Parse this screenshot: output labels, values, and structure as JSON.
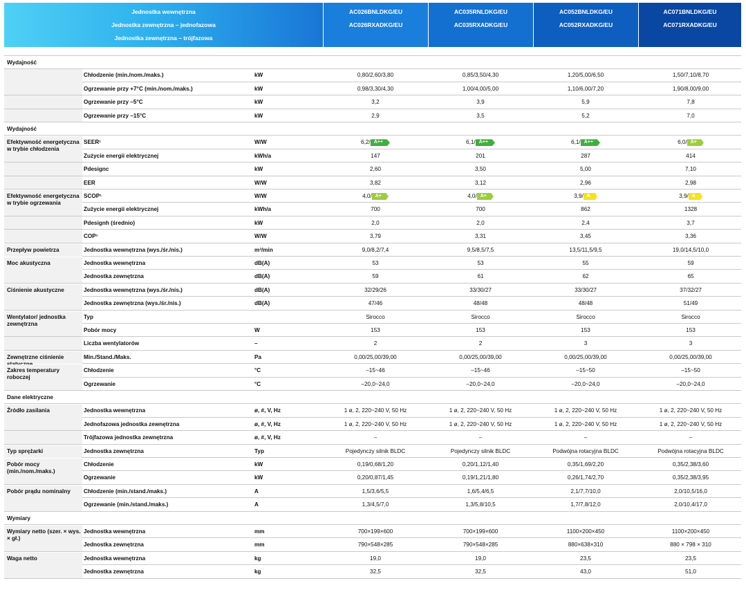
{
  "header": {
    "left_lines": [
      "Jednostka wewnętrzna",
      "Jednostka zewnętrzna – jednofazowa",
      "Jednostka zewnętrzna – trójfazowa"
    ],
    "models": [
      {
        "line1": "AC026BNLDKG/EU",
        "line2": "AC026RXADKG/EU"
      },
      {
        "line1": "AC035RNLDKG/EU",
        "line2": "AC035RXADKG/EU"
      },
      {
        "line1": "AC052BNLDKG/EU",
        "line2": "AC052RXADKG/EU"
      },
      {
        "line1": "AC071BNLDKG/EU",
        "line2": "AC071RXADKG/EU"
      }
    ],
    "colors": [
      "#4fd0f5",
      "#1876d6",
      "#0a3f9c"
    ]
  },
  "badge_colors": {
    "A++": "#3eae3c",
    "A+": "#9ccd3d",
    "A": "#f6e21a"
  },
  "rows": [
    {
      "section": "Wydajność"
    },
    {
      "group": "",
      "param": "Chłodzenie (min./nom./maks.)",
      "unit": "kW",
      "vals": [
        "0,80/2,60/3,80",
        "0,85/3,50/4,30",
        "1,20/5,00/6,50",
        "1,50/7,10/8,70"
      ]
    },
    {
      "param": "Ogrzewanie przy +7°C (min./nom./maks.)",
      "unit": "kW",
      "vals": [
        "0,98/3,30/4,30",
        "1,00/4,00/5,00",
        "1,10/6,00/7,20",
        "1,90/8,00/9,00"
      ]
    },
    {
      "param": "Ogrzewanie przy –5°C",
      "unit": "kW",
      "vals": [
        "3,2",
        "3,9",
        "5,9",
        "7,8"
      ]
    },
    {
      "param": "Ogrzewanie przy –15°C",
      "unit": "kW",
      "vals": [
        "2,9",
        "3,5",
        "5,2",
        "7,0"
      ]
    },
    {
      "section": "Wydajność"
    },
    {
      "group": "Efektywność energetyczna w trybie chłodzenia",
      "param": "SEER¹",
      "unit": "W/W",
      "vals": [
        "6,2/",
        "6,1/",
        "6,1/",
        "6,0/"
      ],
      "badges": [
        "A++",
        "A++",
        "A++",
        "A+"
      ]
    },
    {
      "param": "Zużycie energii elektrycznej",
      "unit": "kWh/a",
      "vals": [
        "147",
        "201",
        "287",
        "414"
      ]
    },
    {
      "param": "Pdesignc",
      "unit": "kW",
      "vals": [
        "2,60",
        "3,50",
        "5,00",
        "7,10"
      ]
    },
    {
      "param": "EER",
      "unit": "W/W",
      "vals": [
        "3,82",
        "3,12",
        "2,96",
        "2,98"
      ]
    },
    {
      "group": "Efektywność energetyczna w trybie ogrzewania",
      "param": "SCOP¹",
      "unit": "W/W",
      "vals": [
        "4,0/",
        "4,0/",
        "3,9/",
        "3,9/"
      ],
      "badges": [
        "A+",
        "A+",
        "A",
        "A"
      ]
    },
    {
      "param": "Zużycie energii elektrycznej",
      "unit": "kWh/a",
      "vals": [
        "700",
        "700",
        "862",
        "1328"
      ]
    },
    {
      "param": "Pdesignh (średnio)",
      "unit": "kW",
      "vals": [
        "2,0",
        "2,0",
        "2,4",
        "3,7"
      ]
    },
    {
      "param": "COP¹",
      "unit": "W/W",
      "vals": [
        "3,79",
        "3,31",
        "3,45",
        "3,36"
      ]
    },
    {
      "group": "Przepływ powietrza",
      "param": "Jednostka wewnętrzna (wys./śr./nis.)",
      "unit": "m³/min",
      "vals": [
        "9,0/8,2/7,4",
        "9,5/8,5/7,5",
        "13,5/11,5/9,5",
        "19,0/14,5/10,0"
      ]
    },
    {
      "group": "Moc akustyczna",
      "param": "Jednostka wewnętrzna",
      "unit": "dB(A)",
      "vals": [
        "53",
        "53",
        "55",
        "59"
      ]
    },
    {
      "param": "Jednostka zewnętrzna",
      "unit": "dB(A)",
      "vals": [
        "59",
        "61",
        "62",
        "65"
      ]
    },
    {
      "group": "Ciśnienie akustyczne",
      "param": "Jednostka wewnętrzna (wys./śr./nis.)",
      "unit": "dB(A)",
      "vals": [
        "32/29/26",
        "33/30/27",
        "33/30/27",
        "37/32/27"
      ]
    },
    {
      "param": "Jednostka zewnętrzna (wys./śr./nis.)",
      "unit": "dB(A)",
      "vals": [
        "47/46",
        "48/48",
        "48/48",
        "51/49"
      ]
    },
    {
      "group": "Wentylator/ jednostka zewnętrzna",
      "param": "Typ",
      "unit": "",
      "vals": [
        "Sirocco",
        "Sirocco",
        "Sirocco",
        "Sirocco"
      ]
    },
    {
      "param": "Pobór mocy",
      "unit": "W",
      "vals": [
        "153",
        "153",
        "153",
        "153"
      ]
    },
    {
      "param": "Liczba wentylatorów",
      "unit": "–",
      "vals": [
        "2",
        "2",
        "3",
        "3"
      ]
    },
    {
      "group": "Zewnętrzne ciśnienie statyczne",
      "param": "Min./Stand./Maks.",
      "unit": "Pa",
      "vals": [
        "0,00/25,00/39,00",
        "0,00/25,00/39,00",
        "0,00/25,00/39,00",
        "0,00/25,00/39,00"
      ]
    },
    {
      "group": "Zakres temperatury roboczej",
      "param": "Chłodzenie",
      "unit": "°C",
      "vals": [
        "–15~46",
        "–15~46",
        "–15~50",
        "–15~50"
      ]
    },
    {
      "param": "Ogrzewanie",
      "unit": "°C",
      "vals": [
        "–20,0~24,0",
        "–20,0~24,0",
        "–20,0~24,0",
        "–20,0~24,0"
      ]
    },
    {
      "section": "Dane elektryczne"
    },
    {
      "group": "Źródło zasilania",
      "param": "Jednostka wewnętrzna",
      "unit": "ø, #, V, Hz",
      "vals": [
        "1 ø, 2, 220~240 V, 50 Hz",
        "1 ø, 2, 220~240 V, 50 Hz",
        "1 ø, 2, 220~240 V, 50 Hz",
        "1 ø, 2, 220~240 V, 50 Hz"
      ]
    },
    {
      "param": "Jednofazowa jednostka zewnętrzna",
      "unit": "ø, #, V, Hz",
      "vals": [
        "1 ø, 2, 220~240 V, 50 Hz",
        "1 ø, 2, 220~240 V, 50 Hz",
        "1 ø, 2, 220~240 V, 50 Hz",
        "1 ø, 2, 220~240 V, 50 Hz"
      ]
    },
    {
      "param": "Trójfazowa jednostka zewnętrzna",
      "unit": "ø, #, V, Hz",
      "vals": [
        "–",
        "–",
        "–",
        "–"
      ]
    },
    {
      "group": "Typ sprężarki",
      "param": "Jednostka zewnętrzna",
      "unit": "Typ",
      "vals": [
        "Pojedynczy silnik BLDC",
        "Pojedynczy silnik BLDC",
        "Podwójna rotacyjna BLDC",
        "Podwójna rotacyjna BLDC"
      ]
    },
    {
      "group": "Pobór mocy (min./nom./maks.)",
      "param": "Chłodzenie",
      "unit": "kW",
      "vals": [
        "0,19/0,68/1,20",
        "0,20/1,12/1,40",
        "0,35/1,69/2,20",
        "0,35/2,38/3,60"
      ]
    },
    {
      "param": "Ogrzewanie",
      "unit": "kW",
      "vals": [
        "0,20/0,87/1,45",
        "0,19/1,21/1,80",
        "0,26/1,74/2,70",
        "0,35/2,38/3,95"
      ]
    },
    {
      "group": "Pobór prądu nominalny",
      "param": "Chłodzenie (min./stand./maks.)",
      "unit": "A",
      "vals": [
        "1,5/3,6/5,5",
        "1,6/5,4/6,5",
        "2,1/7,7/10,0",
        "2,0/10,5/16,0"
      ]
    },
    {
      "param": "Ogrzewanie (min./stand./maks.)",
      "unit": "A",
      "vals": [
        "1,3/4,5/7,0",
        "1,3/5,8/10,5",
        "1,7/7,8/12,0",
        "2,0/10,4/17,0"
      ]
    },
    {
      "section": "Wymiary"
    },
    {
      "group": "Wymiary netto (szer. × wys. × gł.)",
      "param": "Jednostka wewnętrzna",
      "unit": "mm",
      "vals": [
        "700×199×600",
        "700×199×600",
        "1100×200×450",
        "1100×200×450"
      ]
    },
    {
      "param": "Jednostka zewnętrzna",
      "unit": "mm",
      "vals": [
        "790×548×285",
        "790×548×285",
        "880×638×310",
        "880 × 798 × 310"
      ]
    },
    {
      "group": "Waga netto",
      "param": "Jednostka wewnętrzna",
      "unit": "kg",
      "vals": [
        "19,0",
        "19,0",
        "23,5",
        "23,5"
      ]
    },
    {
      "param": "Jednostka zewnętrzna",
      "unit": "kg",
      "vals": [
        "32,5",
        "32,5",
        "43,0",
        "51,0"
      ]
    }
  ]
}
